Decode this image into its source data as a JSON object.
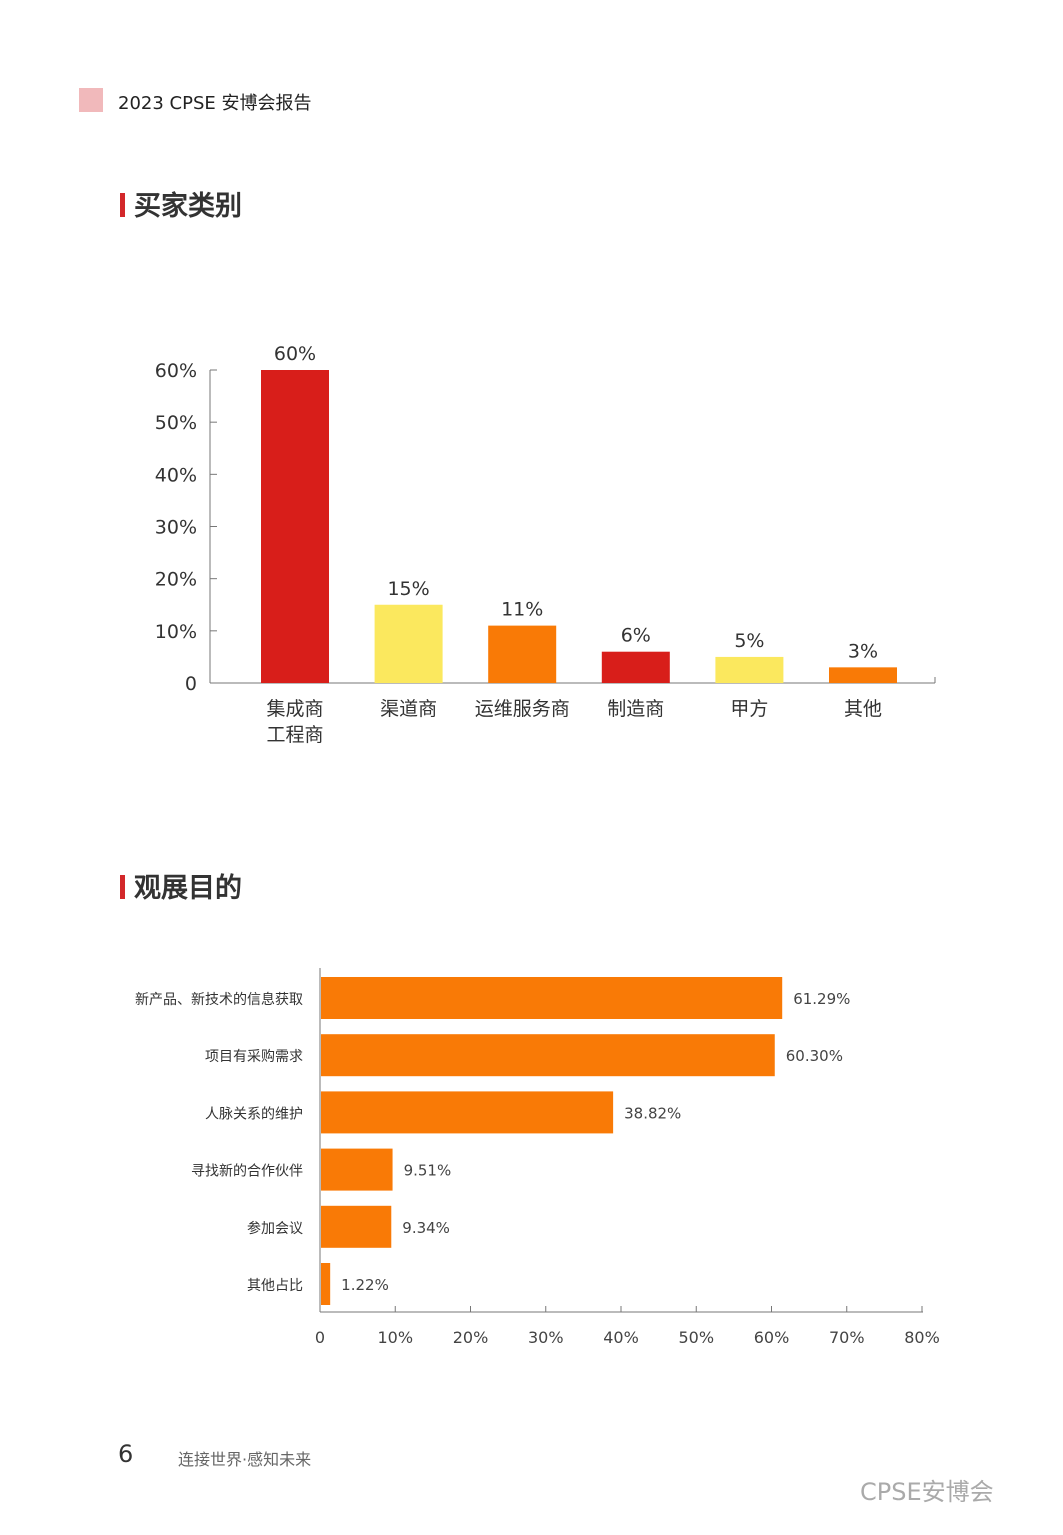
{
  "header": {
    "title": "2023 CPSE 安博会报告"
  },
  "sections": [
    {
      "title": "买家类别"
    },
    {
      "title": "观展目的"
    }
  ],
  "chart_data": [
    {
      "type": "bar",
      "title": "",
      "categories": [
        "集成商\n工程商",
        "渠道商",
        "运维服务商",
        "制造商",
        "甲方",
        "其他"
      ],
      "values": [
        60,
        15,
        11,
        6,
        5,
        3
      ],
      "data_labels": [
        "60%",
        "15%",
        "11%",
        "6%",
        "5%",
        "3%"
      ],
      "colors": [
        "#d81e1a",
        "#fbe85e",
        "#f97a06",
        "#d81e1a",
        "#fbe85e",
        "#f97a06"
      ],
      "yticks": [
        "0",
        "10%",
        "20%",
        "30%",
        "40%",
        "50%",
        "60%"
      ],
      "ylim": [
        0,
        60
      ],
      "grid": false
    },
    {
      "type": "bar",
      "orientation": "horizontal",
      "title": "",
      "categories": [
        "新产品、新技术的信息获取",
        "项目有采购需求",
        "人脉关系的维护",
        "寻找新的合作伙伴",
        "参加会议",
        "其他占比"
      ],
      "values": [
        61.29,
        60.3,
        38.82,
        9.51,
        9.34,
        1.22
      ],
      "data_labels": [
        "61.29%",
        "60.30%",
        "38.82%",
        "9.51%",
        "9.34%",
        "1.22%"
      ],
      "color": "#f97a06",
      "xticks": [
        "0",
        "10%",
        "20%",
        "30%",
        "40%",
        "50%",
        "60%",
        "70%",
        "80%"
      ],
      "xlim": [
        0,
        80
      ],
      "grid": false
    }
  ],
  "footer": {
    "page_number": "6",
    "slogan": "连接世界·感知未来",
    "watermark": "CPSE安博会"
  }
}
